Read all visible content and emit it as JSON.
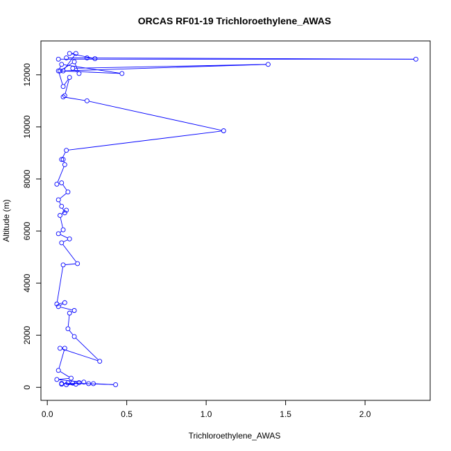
{
  "chart_data": {
    "type": "line",
    "title": "ORCAS RF01-19 Trichloroethylene_AWAS",
    "xlabel": "Trichloroethylene_AWAS",
    "ylabel": "Altitude (m)",
    "xlim": [
      0,
      2.4
    ],
    "ylim": [
      0,
      13000
    ],
    "x_ticks": [
      0,
      0.5,
      1.0,
      1.5,
      2.0
    ],
    "x_tick_labels": [
      "0.0",
      "0.5",
      "1.0",
      "1.5",
      "2.0"
    ],
    "y_ticks": [
      0,
      2000,
      4000,
      6000,
      8000,
      10000,
      12000
    ],
    "y_tick_labels": [
      "0",
      "2000",
      "4000",
      "6000",
      "8000",
      "10000",
      "12000"
    ],
    "grid": false,
    "legend": "none",
    "series_color": "#0000ff",
    "marker": "open-circle",
    "series": [
      {
        "name": "",
        "x": [
          0.07,
          2.32,
          0.12,
          0.25,
          0.3,
          0.14,
          0.18,
          0.1,
          1.39,
          0.16,
          0.2,
          0.17,
          0.08,
          0.47,
          0.09,
          0.07,
          0.1,
          0.14,
          0.11,
          0.1,
          0.25,
          1.11,
          0.12,
          0.09,
          0.1,
          0.11,
          0.06,
          0.09,
          0.13,
          0.07,
          0.09,
          0.11,
          0.12,
          0.08,
          0.1,
          0.07,
          0.14,
          0.09,
          0.19,
          0.1,
          0.06,
          0.11,
          0.07,
          0.17,
          0.14,
          0.13,
          0.17,
          0.33,
          0.08,
          0.11,
          0.07,
          0.15,
          0.06,
          0.23,
          0.2,
          0.12,
          0.18,
          0.09,
          0.26,
          0.29,
          0.43,
          0.16,
          0.13,
          0.09
        ],
        "y": [
          12600,
          12600,
          12650,
          12650,
          12620,
          12820,
          12820,
          12150,
          12400,
          12250,
          12050,
          12500,
          12150,
          12050,
          12400,
          12150,
          11550,
          11900,
          11200,
          11150,
          11000,
          9850,
          9100,
          8750,
          8750,
          8550,
          7800,
          7850,
          7500,
          7200,
          6950,
          6700,
          6800,
          6600,
          6050,
          5900,
          5700,
          5550,
          4750,
          4700,
          3200,
          3250,
          3100,
          2950,
          2850,
          2250,
          1950,
          1000,
          1500,
          1500,
          650,
          350,
          300,
          200,
          180,
          100,
          120,
          150,
          140,
          140,
          100,
          160,
          170,
          120
        ]
      }
    ]
  }
}
